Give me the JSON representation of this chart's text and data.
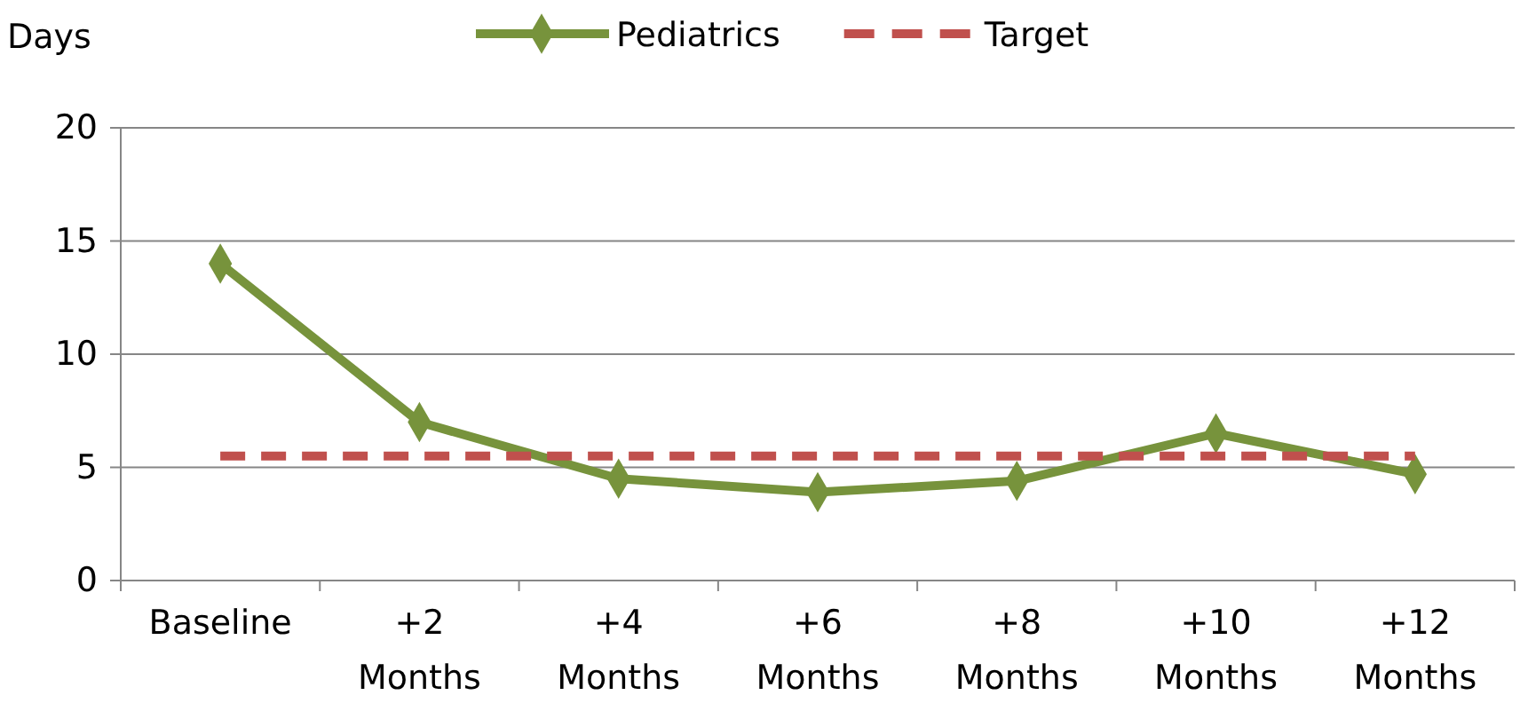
{
  "chart_data": {
    "type": "line",
    "ylabel": "Days",
    "categories": [
      "Baseline",
      "+2 Months",
      "+4 Months",
      "+6 Months",
      "+8 Months",
      "+10 Months",
      "+12 Months"
    ],
    "series": [
      {
        "name": "Pediatrics",
        "color": "#77933c",
        "values": [
          14,
          7,
          4.5,
          3.9,
          4.4,
          6.5,
          4.7
        ],
        "marker": "diamond",
        "line_style": "solid"
      },
      {
        "name": "Target",
        "color": "#c0504d",
        "values": [
          5.5,
          5.5,
          5.5,
          5.5,
          5.5,
          5.5,
          5.5
        ],
        "marker": "none",
        "line_style": "dashed"
      }
    ],
    "ylim": [
      0,
      20
    ],
    "yticks": [
      0,
      5,
      10,
      15,
      20
    ],
    "grid": "y",
    "legend": "top"
  }
}
